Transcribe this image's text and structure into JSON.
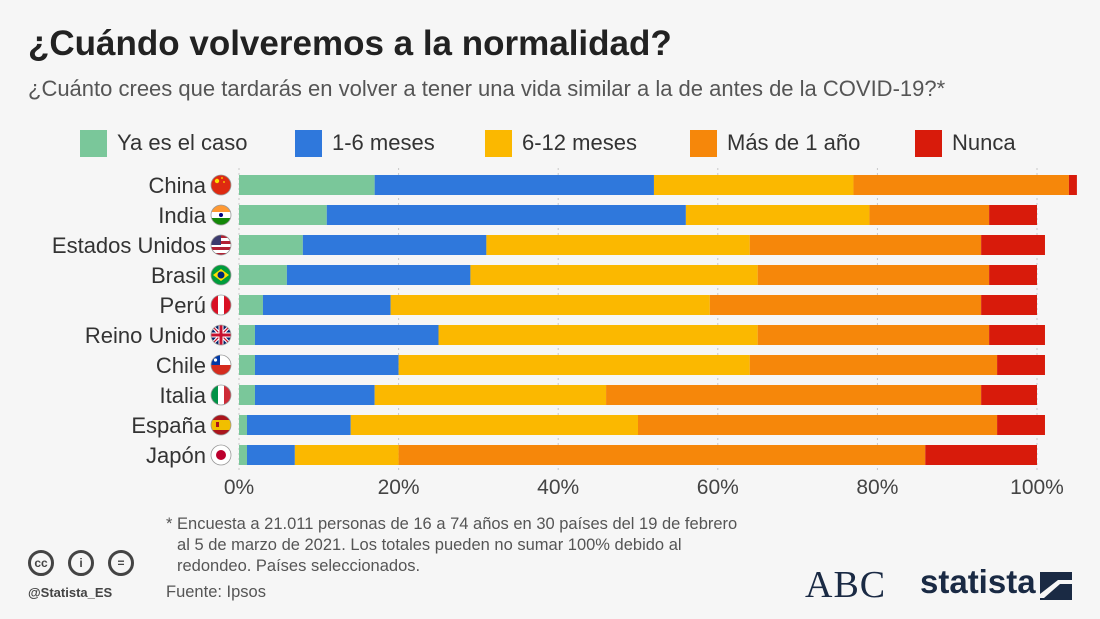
{
  "title": "¿Cuándo volveremos a la normalidad?",
  "subtitle": "¿Cuánto crees que tardarás en volver a tener una vida similar a la de antes de la COVID-19?*",
  "legend": [
    {
      "label": "Ya es el caso",
      "color": "#7ac79a"
    },
    {
      "label": "1-6 meses",
      "color": "#2f78dc"
    },
    {
      "label": "6-12 meses",
      "color": "#fbb800"
    },
    {
      "label": "Más de 1 año",
      "color": "#f6870a"
    },
    {
      "label": "Nunca",
      "color": "#d81b0b"
    }
  ],
  "chart_data": {
    "type": "bar",
    "orientation": "horizontal",
    "stacked": true,
    "categories": [
      "China",
      "India",
      "Estados Unidos",
      "Brasil",
      "Perú",
      "Reino Unido",
      "Chile",
      "Italia",
      "España",
      "Japón"
    ],
    "series": [
      {
        "name": "Ya es el caso",
        "color": "#7ac79a",
        "values": [
          17,
          11,
          8,
          6,
          3,
          2,
          2,
          2,
          1,
          1
        ]
      },
      {
        "name": "1-6 meses",
        "color": "#2f78dc",
        "values": [
          35,
          45,
          23,
          23,
          16,
          23,
          18,
          15,
          13,
          6
        ]
      },
      {
        "name": "6-12 meses",
        "color": "#fbb800",
        "values": [
          25,
          23,
          33,
          36,
          40,
          40,
          44,
          29,
          36,
          13
        ]
      },
      {
        "name": "Más de 1 año",
        "color": "#f6870a",
        "values": [
          27,
          15,
          29,
          29,
          34,
          29,
          31,
          47,
          45,
          66
        ]
      },
      {
        "name": "Nunca",
        "color": "#d81b0b",
        "values": [
          1,
          6,
          8,
          6,
          7,
          7,
          6,
          7,
          6,
          14
        ]
      }
    ],
    "xlim": [
      0,
      100
    ],
    "xticks": [
      "0%",
      "20%",
      "40%",
      "60%",
      "80%",
      "100%"
    ],
    "grid": true,
    "legend_position": "top"
  },
  "flags": [
    "china-flag-icon",
    "india-flag-icon",
    "usa-flag-icon",
    "brazil-flag-icon",
    "peru-flag-icon",
    "uk-flag-icon",
    "chile-flag-icon",
    "italy-flag-icon",
    "spain-flag-icon",
    "japan-flag-icon"
  ],
  "footnote": {
    "marker": "*",
    "text": "Encuesta a 21.011 personas de 16 a 74 años en 30 países del 19 de febrero al 5 de marzo de 2021. Los totales pueden no sumar 100% debido al redondeo. Países seleccionados."
  },
  "source": "Fuente: Ipsos",
  "handle": "@Statista_ES",
  "license_icons": [
    "cc",
    "i",
    "="
  ],
  "logos": {
    "abc": "ABC",
    "statista": "statista"
  }
}
